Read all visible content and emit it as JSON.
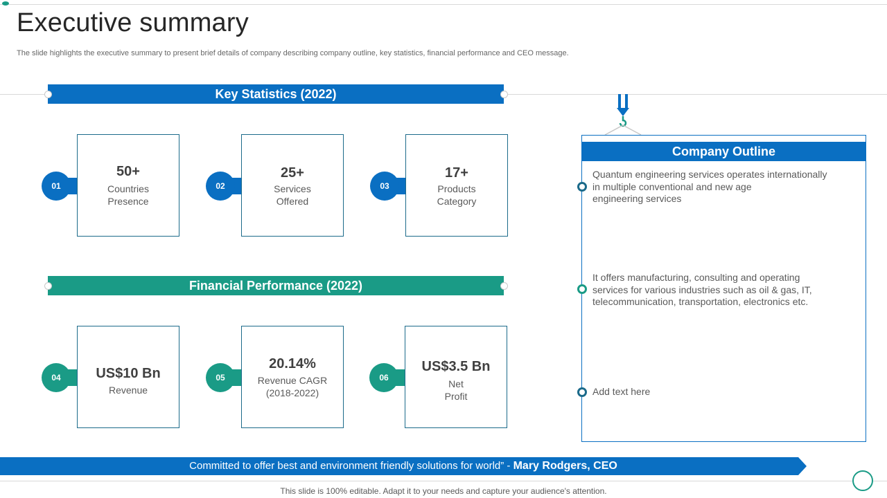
{
  "title": "Executive summary",
  "subtitle": "The slide highlights the executive summary to present brief details of company describing company outline, key statistics, financial performance and CEO message.",
  "key_statistics": {
    "heading": "Key Statistics (2022)",
    "items": [
      {
        "num": "01",
        "value": "50+",
        "line1": "Countries",
        "line2": "Presence"
      },
      {
        "num": "02",
        "value": "25+",
        "line1": "Services",
        "line2": "Offered"
      },
      {
        "num": "03",
        "value": "17+",
        "line1": "Products",
        "line2": "Category"
      }
    ]
  },
  "financial_performance": {
    "heading": "Financial Performance (2022)",
    "items": [
      {
        "num": "04",
        "value": "US$10 Bn",
        "line1": "Revenue",
        "line2": ""
      },
      {
        "num": "05",
        "value": "20.14%",
        "line1": "Revenue CAGR",
        "line2": "(2018-2022)"
      },
      {
        "num": "06",
        "value": "US$3.5 Bn",
        "line1": "Net",
        "line2": "Profit"
      }
    ]
  },
  "company_outline": {
    "heading": "Company Outline",
    "points": [
      {
        "lines": [
          "Quantum engineering services operates internationally",
          "in multiple conventional and new age",
          "engineering services"
        ]
      },
      {
        "lines": [
          "It offers manufacturing, consulting and operating",
          "services for various industries such as oil & gas, IT,",
          "telecommunication, transportation, electronics etc."
        ]
      },
      {
        "lines": [
          "Add text here"
        ]
      }
    ]
  },
  "ceo_quote": {
    "text": "Committed to offer best and environment friendly solutions for world”",
    "dash": " - ",
    "author": "Mary Rodgers, CEO"
  },
  "footer_note": "This slide is 100% editable. Adapt it to your needs and capture your audience's attention.",
  "colors": {
    "blue": "#0a6fc2",
    "green": "#1a9b86",
    "border": "#1b6a8a"
  }
}
